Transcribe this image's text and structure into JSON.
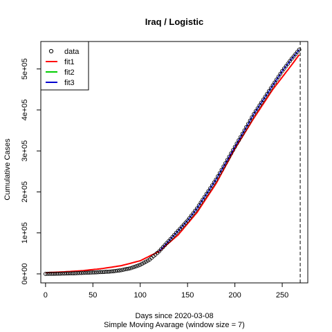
{
  "chart_data": {
    "type": "line",
    "title": "Iraq / Logistic",
    "xlabel": "Days since 2020-03-08",
    "xlabel2": "Simple Moving Avarage (window size = 7)",
    "ylabel": "Cumulative Cases",
    "xlim": [
      -5,
      277
    ],
    "ylim": [
      -22000,
      567000
    ],
    "xticks": [
      0,
      50,
      100,
      150,
      200,
      250
    ],
    "xtick_labels": [
      "0",
      "50",
      "100",
      "150",
      "200",
      "250"
    ],
    "yticks": [
      0,
      100000,
      200000,
      300000,
      400000,
      500000
    ],
    "ytick_labels": [
      "0e+00",
      "1e+05",
      "2e+05",
      "3e+05",
      "4e+05",
      "5e+05"
    ],
    "vline_x": 269,
    "legend_position": "top-left",
    "legend": [
      {
        "label": "data",
        "kind": "point",
        "color": "#000000"
      },
      {
        "label": "fit1",
        "kind": "line",
        "color": "#ff0000"
      },
      {
        "label": "fit2",
        "kind": "line",
        "color": "#00cd00"
      },
      {
        "label": "fit3",
        "kind": "line",
        "color": "#0000cd"
      }
    ],
    "data_points": [
      [
        0,
        0
      ],
      [
        10,
        300
      ],
      [
        20,
        800
      ],
      [
        30,
        1500
      ],
      [
        40,
        2500
      ],
      [
        50,
        3500
      ],
      [
        60,
        4500
      ],
      [
        70,
        6000
      ],
      [
        80,
        9000
      ],
      [
        90,
        14000
      ],
      [
        100,
        22000
      ],
      [
        110,
        35000
      ],
      [
        120,
        55000
      ],
      [
        130,
        80000
      ],
      [
        140,
        105000
      ],
      [
        150,
        130000
      ],
      [
        160,
        160000
      ],
      [
        170,
        195000
      ],
      [
        180,
        230000
      ],
      [
        190,
        270000
      ],
      [
        200,
        310000
      ],
      [
        210,
        350000
      ],
      [
        220,
        390000
      ],
      [
        230,
        425000
      ],
      [
        240,
        460000
      ],
      [
        250,
        495000
      ],
      [
        260,
        525000
      ],
      [
        269,
        550000
      ]
    ],
    "fit1": [
      [
        0,
        3000
      ],
      [
        20,
        5000
      ],
      [
        40,
        8000
      ],
      [
        60,
        13000
      ],
      [
        80,
        20000
      ],
      [
        100,
        32000
      ],
      [
        120,
        55000
      ],
      [
        140,
        95000
      ],
      [
        160,
        150000
      ],
      [
        180,
        220000
      ],
      [
        200,
        305000
      ],
      [
        220,
        380000
      ],
      [
        240,
        450000
      ],
      [
        260,
        510000
      ],
      [
        269,
        538000
      ]
    ]
  }
}
